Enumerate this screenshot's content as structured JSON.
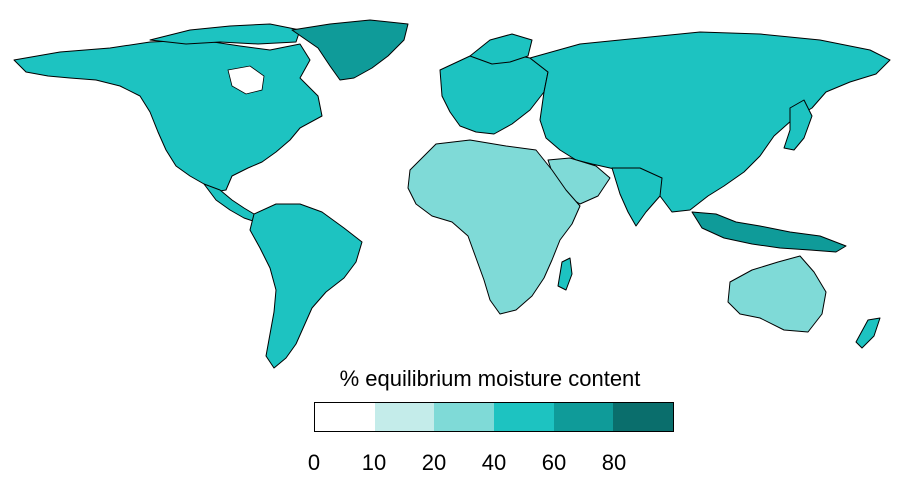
{
  "legend": {
    "title": "% equilibrium moisture content",
    "bins": [
      {
        "from": 0,
        "to": 10,
        "color": "#ffffff"
      },
      {
        "from": 10,
        "to": 20,
        "color": "#c4ecea"
      },
      {
        "from": 20,
        "to": 40,
        "color": "#7fdad7"
      },
      {
        "from": 40,
        "to": 60,
        "color": "#1dc3c1"
      },
      {
        "from": 60,
        "to": 80,
        "color": "#0f9b99"
      },
      {
        "from": 80,
        "to": 100,
        "color": "#0a6e6c"
      }
    ],
    "ticks": [
      "0",
      "10",
      "20",
      "40",
      "60",
      "80"
    ]
  },
  "colors": {
    "land_base": "#1dc3c1",
    "coastline": "#000000",
    "ocean": "#ffffff"
  }
}
